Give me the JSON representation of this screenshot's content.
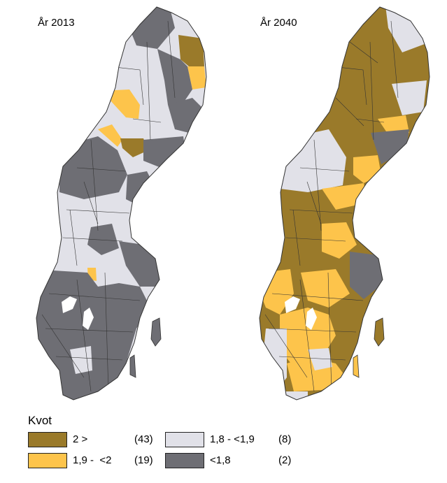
{
  "maps": [
    {
      "title": "År 2013"
    },
    {
      "title": "År 2040"
    }
  ],
  "legend": {
    "title": "Kvot",
    "items": [
      {
        "label": "2 >",
        "count": "(43)",
        "color": "#9a7a2a"
      },
      {
        "label": "1,9 -  <2",
        "count": "(19)",
        "color": "#fdc44b"
      },
      {
        "label": "1,8 - <1,9",
        "count": "(8)",
        "color": "#e1e1e8"
      },
      {
        "label": "<1,8",
        "count": "(2)",
        "color": "#6e6e74"
      }
    ]
  },
  "colors": {
    "brown": "#9a7a2a",
    "yellow": "#fdc44b",
    "light": "#e1e1e8",
    "dark": "#6e6e74",
    "lake": "#ffffff",
    "border": "#333333"
  }
}
